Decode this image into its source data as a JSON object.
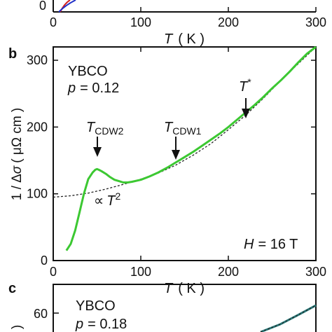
{
  "chart_data": [
    {
      "panel": "a",
      "type": "line",
      "xlim": [
        0,
        300
      ],
      "xticks": [
        0,
        100,
        200,
        300
      ],
      "yticks": [
        0
      ],
      "xlabel": "T ( K )",
      "note": "panel cropped at top; only bottom axis visible",
      "colors": [
        "#d22020",
        "#2030c8"
      ]
    },
    {
      "panel": "b",
      "type": "line",
      "xlim": [
        0,
        300
      ],
      "ylim": [
        0,
        320
      ],
      "xticks": [
        0,
        100,
        200,
        300
      ],
      "yticks": [
        0,
        100,
        200,
        300
      ],
      "xlabel": "T ( K )",
      "ylabel": "1 / Δσ ( μΩ cm )",
      "series": [
        {
          "style": "solid",
          "color": "#3cc832",
          "x": [
            15,
            20,
            25,
            30,
            35,
            40,
            45,
            48,
            50,
            52,
            55,
            60,
            65,
            70,
            75,
            80,
            85,
            90,
            100,
            110,
            120,
            130,
            140,
            150,
            160,
            170,
            180,
            190,
            200,
            210,
            220,
            230,
            240,
            250,
            260,
            270,
            280,
            290,
            300
          ],
          "y": [
            15,
            25,
            45,
            72,
            100,
            122,
            132,
            136,
            137,
            136,
            134,
            130,
            125,
            121,
            119,
            117,
            117,
            118,
            121,
            126,
            132,
            139,
            147,
            155,
            163,
            172,
            181,
            190,
            200,
            211,
            222,
            233,
            245,
            258,
            270,
            283,
            297,
            310,
            320
          ]
        },
        {
          "style": "dashed",
          "color": "#222222",
          "x": [
            0,
            20,
            40,
            60,
            80,
            100,
            120,
            140,
            160,
            180,
            200,
            220,
            240,
            260,
            280,
            300
          ],
          "y": [
            95,
            97,
            101,
            107,
            114,
            122,
            131,
            143,
            158,
            175,
            196,
            218,
            243,
            270,
            295,
            320
          ]
        }
      ],
      "annotations": {
        "material": "YBCO",
        "doping": "p = 0.12",
        "field": "H = 16 T",
        "t_squared": "∝ T²",
        "arrows": [
          {
            "label": "T_CDW2",
            "x": 50
          },
          {
            "label": "T_CDW1",
            "x": 140
          },
          {
            "label": "T*",
            "x": 220
          }
        ]
      }
    },
    {
      "panel": "c",
      "type": "line",
      "xlim": [
        0,
        300
      ],
      "yticks": [
        60
      ],
      "series": [
        {
          "style": "solid",
          "color": "#2a7a7a"
        }
      ],
      "annotations": {
        "material": "YBCO",
        "doping": "p = 0.18"
      },
      "note": "panel cropped at bottom"
    }
  ],
  "labels": {
    "panel_b": "b",
    "panel_c": "c",
    "xaxis_T": "T",
    "xaxis_unit": "( K )",
    "ylabel_prefix": "1 / Δ",
    "ylabel_sigma": "σ",
    "ylabel_unit": "( μΩ cm )",
    "material_b": "YBCO",
    "p_sym": "p",
    "p_b_val": "= 0.12",
    "field_H": "H",
    "field_val": "= 16 T",
    "tstar_T": "T",
    "tstar_sup": "*",
    "tcdw_T": "T",
    "tcdw2_sub": "CDW2",
    "tcdw1_sub": "CDW1",
    "prop_sym": "∝",
    "prop_T": "T",
    "prop_exp": "2",
    "material_c": "YBCO",
    "p_c_val": "= 0.18",
    "top_y0": "0",
    "c_y60": "60"
  }
}
